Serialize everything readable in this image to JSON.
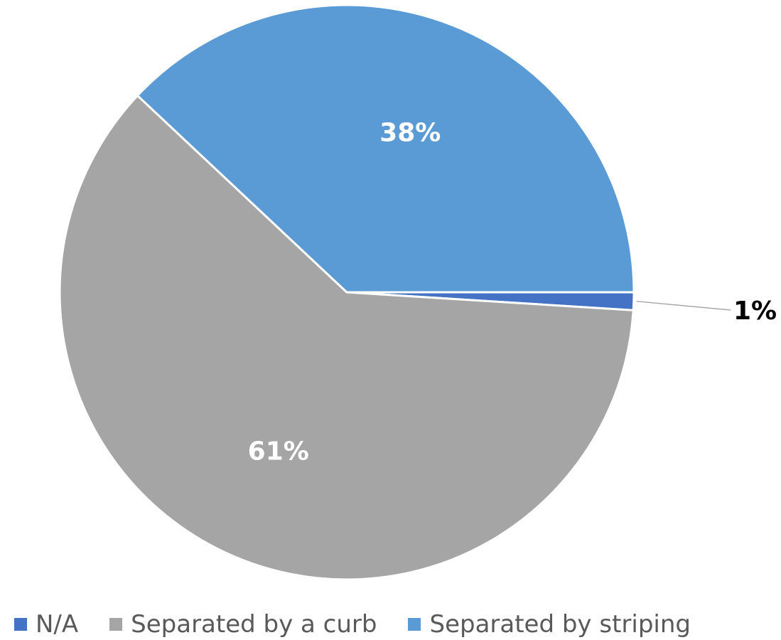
{
  "chart_data": {
    "type": "pie",
    "title": "",
    "slices": [
      {
        "label": "N/A",
        "value": 1,
        "display": "1%",
        "color": "#4472C4"
      },
      {
        "label": "Separated by a curb",
        "value": 61,
        "display": "61%",
        "color": "#A5A5A5"
      },
      {
        "label": "Separated by striping",
        "value": 38,
        "display": "38%",
        "color": "#5B9BD5"
      }
    ],
    "start_angle_deg": 0,
    "direction": "clockwise",
    "legend_position": "bottom-left"
  },
  "legend": {
    "items": [
      {
        "label": "N/A",
        "color": "#4472C4"
      },
      {
        "label": "Separated by a curb",
        "color": "#A5A5A5"
      },
      {
        "label": "Separated by striping",
        "color": "#5B9BD5"
      }
    ]
  }
}
